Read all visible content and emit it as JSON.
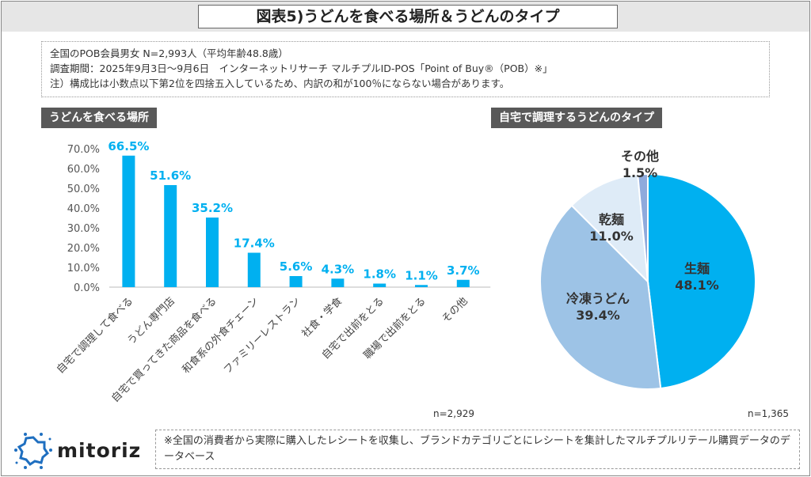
{
  "title": "図表5)うどんを食べる場所＆うどんのタイプ",
  "info": [
    "全国のPOB会員男女 N=2,993人（平均年齢48.8歳）",
    "調査期間：2025年9月3日～9月6日　インターネットリサーチ マルチプルID-POS「Point of Buy®（POB）※」",
    "注）構成比は小数点以下第2位を四捨五入しているため、内訳の和が100％にならない場合があります。"
  ],
  "left_header": "うどんを食べる場所",
  "right_header": "自宅で調理するうどんのタイプ",
  "left_n": "n=2,929",
  "right_n": "n=1,365",
  "footnote": "※全国の消費者から実際に購入したレシートを収集し、ブランドカテゴリごとにレシートを集計したマルチプルリテール購買データのデータベース",
  "logo_text": "mitoriz",
  "colors": {
    "bar": "#00b0f0",
    "label": "#00b0f0",
    "header_bg": "#595959"
  },
  "chart_data": [
    {
      "type": "bar",
      "categories": [
        "自宅で調理して食べる",
        "うどん専門店",
        "自宅で買ってきた商品を食べる",
        "和食系の外食チェーン",
        "ファミリーレストラン",
        "社食・学食",
        "自宅で出前をとる",
        "職場で出前をとる",
        "その他"
      ],
      "values": [
        66.5,
        51.6,
        35.2,
        17.4,
        5.6,
        4.3,
        1.8,
        1.1,
        3.7
      ],
      "data_labels": [
        "66.5%",
        "51.6%",
        "35.2%",
        "17.4%",
        "5.6%",
        "4.3%",
        "1.8%",
        "1.1%",
        "3.7%"
      ],
      "ylim": [
        0,
        70
      ],
      "yticks": [
        "0.0%",
        "10.0%",
        "20.0%",
        "30.0%",
        "40.0%",
        "50.0%",
        "60.0%",
        "70.0%"
      ],
      "grid": false
    },
    {
      "type": "pie",
      "slices": [
        {
          "label": "生麺",
          "value": 48.1,
          "text": "48.1%",
          "color": "#00b0f0"
        },
        {
          "label": "冷凍うどん",
          "value": 39.4,
          "text": "39.4%",
          "color": "#9dc3e6"
        },
        {
          "label": "乾麺",
          "value": 11.0,
          "text": "11.0%",
          "color": "#deebf7"
        },
        {
          "label": "その他",
          "value": 1.5,
          "text": "1.5%",
          "color": "#8faadc"
        }
      ]
    }
  ]
}
